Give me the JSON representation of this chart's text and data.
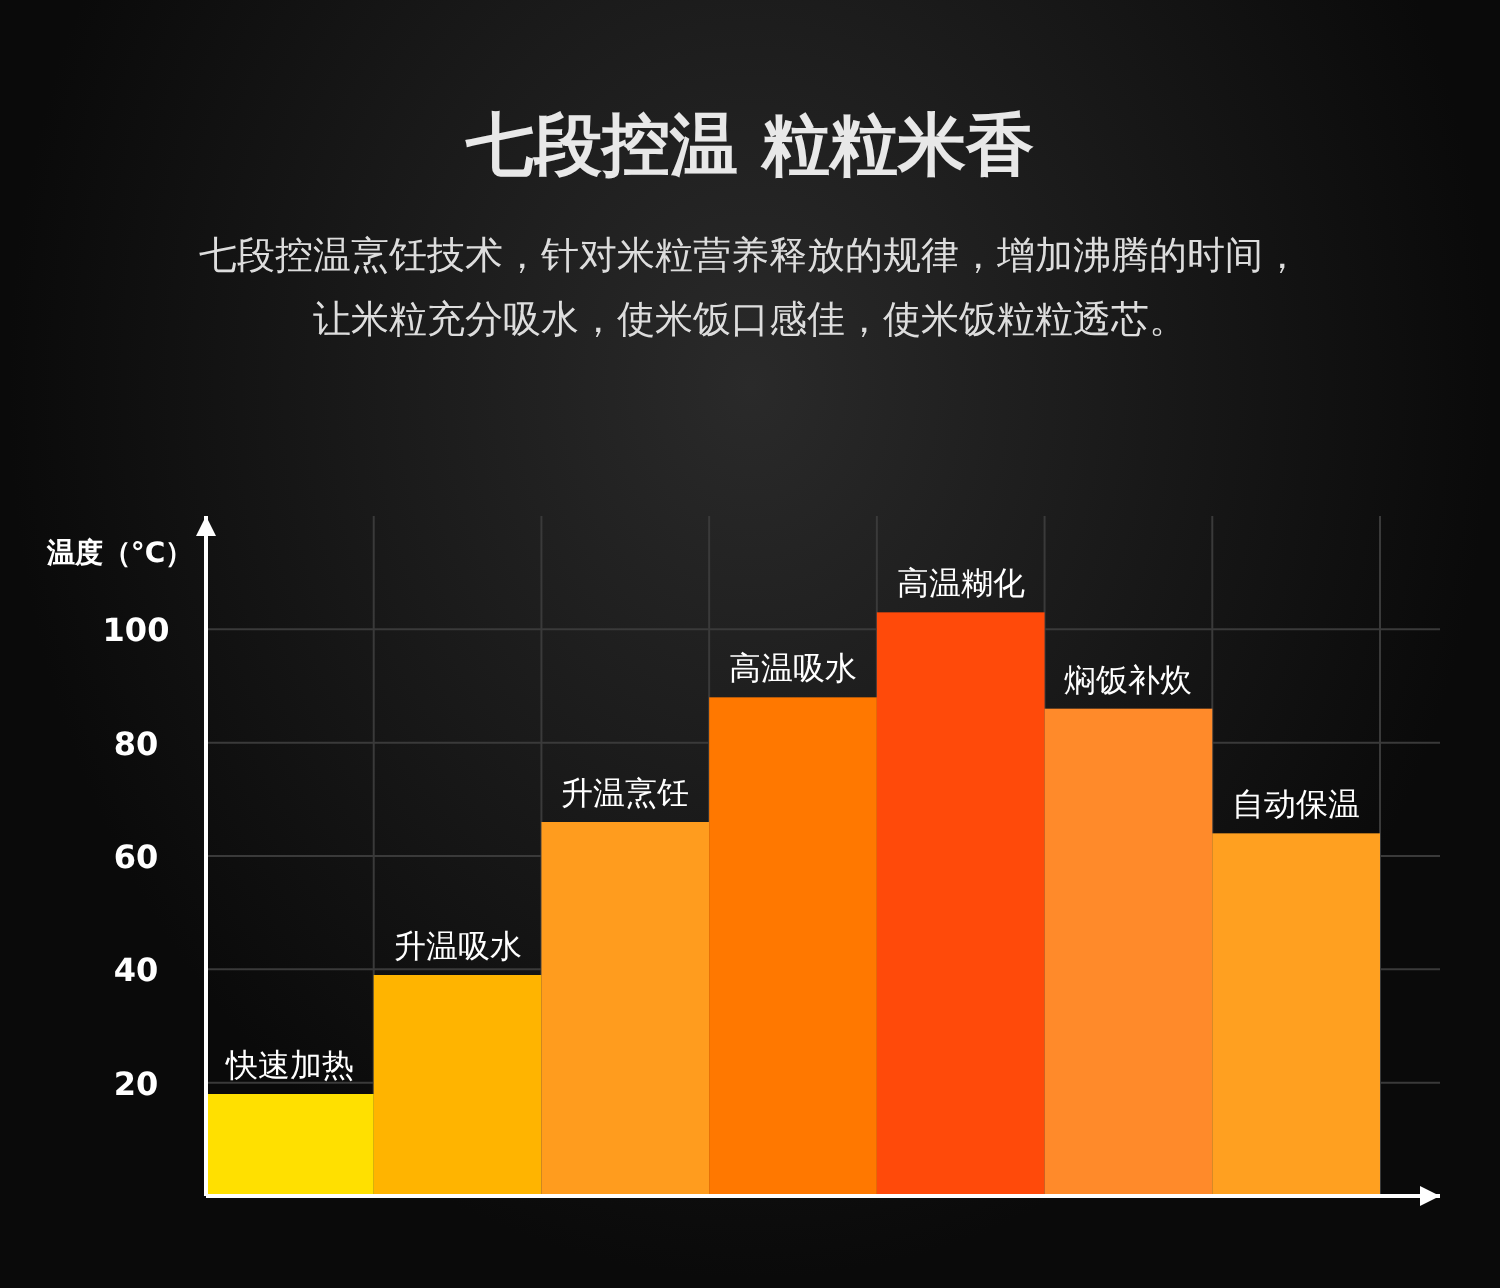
{
  "chart_data": {
    "type": "bar",
    "title": "七段控温 粒粒米香",
    "subtitle": "七段控温烹饪技术，针对米粒营养释放的规律，增加沸腾的时间，让米粒充分吸水，使米饭口感佳，使米饭粒粒透芯。",
    "ylabel": "温度（°C）",
    "categories": [
      "快速加热",
      "升温吸水",
      "升温烹饪",
      "高温吸水",
      "高温糊化",
      "焖饭补炊",
      "自动保温"
    ],
    "values": [
      18,
      39,
      66,
      88,
      103,
      86,
      64
    ],
    "colors": [
      "#ffe000",
      "#ffb400",
      "#ff9c1e",
      "#ff7800",
      "#ff4a0a",
      "#ff8a2a",
      "#ffa020"
    ],
    "ylim": [
      0,
      120
    ],
    "yticks": [
      20,
      40,
      60,
      80,
      100
    ],
    "grid": true
  }
}
